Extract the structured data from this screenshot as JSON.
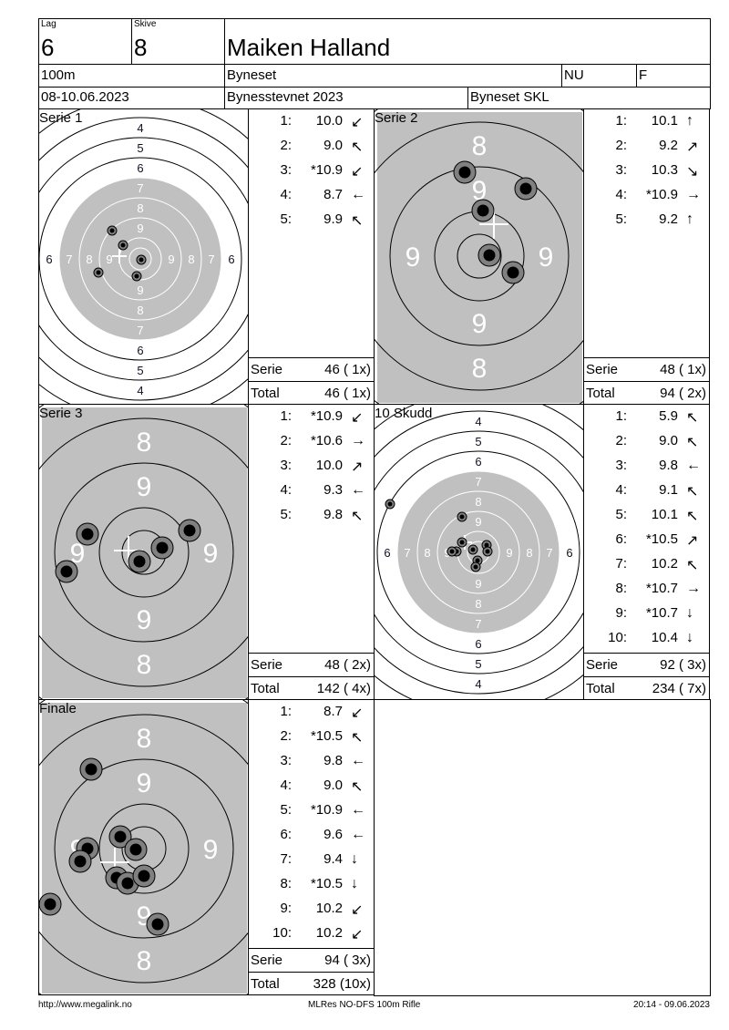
{
  "header": {
    "lag_label": "Lag",
    "lag": "6",
    "skive_label": "Skive",
    "skive": "8",
    "name": "Maiken Halland",
    "distance": "100m",
    "club": "Byneset",
    "class": "NU",
    "gender": "F",
    "date": "08-10.06.2023",
    "event": "Bynesstevnet 2023",
    "organizer": "Byneset SKL"
  },
  "colors": {
    "target_grey": "#c0c0c0",
    "shot_ring": "#808080",
    "shot_core": "#000000"
  },
  "series": [
    {
      "title": "Serie 1",
      "view": "full",
      "shots": [
        {
          "n": "1:",
          "v": "10.0",
          "dir": "down-left"
        },
        {
          "n": "2:",
          "v": "9.0",
          "dir": "up-left"
        },
        {
          "n": "3:",
          "v": "*10.9",
          "dir": "down-left"
        },
        {
          "n": "4:",
          "v": "8.7",
          "dir": "left"
        },
        {
          "n": "5:",
          "v": "9.9",
          "dir": "up-left"
        }
      ],
      "serie_label": "Serie",
      "serie": "46 ( 1x)",
      "total_label": "Total",
      "total": "46 ( 1x)"
    },
    {
      "title": "Serie 2",
      "view": "zoom",
      "shots": [
        {
          "n": "1:",
          "v": "10.1",
          "dir": "up"
        },
        {
          "n": "2:",
          "v": "9.2",
          "dir": "up-right"
        },
        {
          "n": "3:",
          "v": "10.3",
          "dir": "down-right"
        },
        {
          "n": "4:",
          "v": "*10.9",
          "dir": "right"
        },
        {
          "n": "5:",
          "v": "9.2",
          "dir": "up"
        }
      ],
      "serie_label": "Serie",
      "serie": "48 ( 1x)",
      "total_label": "Total",
      "total": "94 ( 2x)"
    },
    {
      "title": "Serie 3",
      "view": "zoom",
      "shots": [
        {
          "n": "1:",
          "v": "*10.9",
          "dir": "down-left"
        },
        {
          "n": "2:",
          "v": "*10.6",
          "dir": "right"
        },
        {
          "n": "3:",
          "v": "10.0",
          "dir": "up-right"
        },
        {
          "n": "4:",
          "v": "9.3",
          "dir": "left"
        },
        {
          "n": "5:",
          "v": "9.8",
          "dir": "up-left"
        }
      ],
      "serie_label": "Serie",
      "serie": "48 ( 2x)",
      "total_label": "Total",
      "total": "142 ( 4x)"
    },
    {
      "title": "10 Skudd",
      "view": "full",
      "shots": [
        {
          "n": "1:",
          "v": "5.9",
          "dir": "up-left"
        },
        {
          "n": "2:",
          "v": "9.0",
          "dir": "up-left"
        },
        {
          "n": "3:",
          "v": "9.8",
          "dir": "left"
        },
        {
          "n": "4:",
          "v": "9.1",
          "dir": "up-left"
        },
        {
          "n": "5:",
          "v": "10.1",
          "dir": "up-left"
        },
        {
          "n": "6:",
          "v": "*10.5",
          "dir": "up-right"
        },
        {
          "n": "7:",
          "v": "10.2",
          "dir": "up-left"
        },
        {
          "n": "8:",
          "v": "*10.7",
          "dir": "right"
        },
        {
          "n": "9:",
          "v": "*10.7",
          "dir": "down"
        },
        {
          "n": "10:",
          "v": "10.4",
          "dir": "down"
        }
      ],
      "serie_label": "Serie",
      "serie": "92 ( 3x)",
      "total_label": "Total",
      "total": "234 ( 7x)"
    },
    {
      "title": "Finale",
      "view": "zoom",
      "shots": [
        {
          "n": "1:",
          "v": "8.7",
          "dir": "down-left"
        },
        {
          "n": "2:",
          "v": "*10.5",
          "dir": "up-left"
        },
        {
          "n": "3:",
          "v": "9.8",
          "dir": "left"
        },
        {
          "n": "4:",
          "v": "9.0",
          "dir": "up-left"
        },
        {
          "n": "5:",
          "v": "*10.9",
          "dir": "left"
        },
        {
          "n": "6:",
          "v": "9.6",
          "dir": "left"
        },
        {
          "n": "7:",
          "v": "9.4",
          "dir": "down"
        },
        {
          "n": "8:",
          "v": "*10.5",
          "dir": "down"
        },
        {
          "n": "9:",
          "v": "10.2",
          "dir": "down-left"
        },
        {
          "n": "10:",
          "v": "10.2",
          "dir": "down-left"
        }
      ],
      "serie_label": "Serie",
      "serie": "94 ( 3x)",
      "total_label": "Total",
      "total": "328 (10x)"
    }
  ],
  "footer": {
    "url": "http://www.megalink.no",
    "software": "MLRes NO-DFS 100m Rifle",
    "timestamp": "20:14 - 09.06.2023"
  }
}
